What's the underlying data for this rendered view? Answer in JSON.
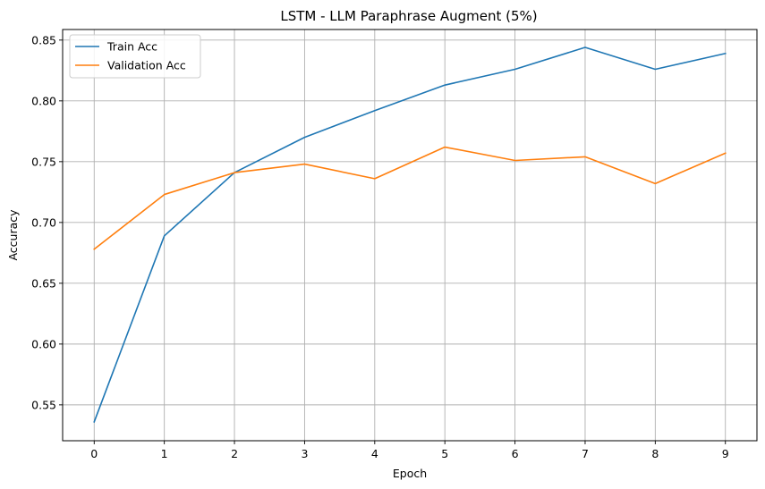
{
  "chart_data": {
    "type": "line",
    "title": "LSTM - LLM Paraphrase Augment (5%)",
    "xlabel": "Epoch",
    "ylabel": "Accuracy",
    "x": [
      0,
      1,
      2,
      3,
      4,
      5,
      6,
      7,
      8,
      9
    ],
    "xticks": [
      "0",
      "1",
      "2",
      "3",
      "4",
      "5",
      "6",
      "7",
      "8",
      "9"
    ],
    "yticks": [
      "0.55",
      "0.60",
      "0.65",
      "0.70",
      "0.75",
      "0.80",
      "0.85"
    ],
    "xlim": [
      -0.45,
      9.45
    ],
    "ylim": [
      0.5205,
      0.8587
    ],
    "grid": true,
    "legend_position": "top-left",
    "series": [
      {
        "name": "Train Acc",
        "color": "#1f77b4",
        "values": [
          0.536,
          0.689,
          0.741,
          0.77,
          0.792,
          0.813,
          0.826,
          0.844,
          0.826,
          0.839
        ]
      },
      {
        "name": "Validation Acc",
        "color": "#ff7f0e",
        "values": [
          0.678,
          0.723,
          0.741,
          0.748,
          0.736,
          0.762,
          0.751,
          0.754,
          0.732,
          0.757
        ]
      }
    ]
  }
}
